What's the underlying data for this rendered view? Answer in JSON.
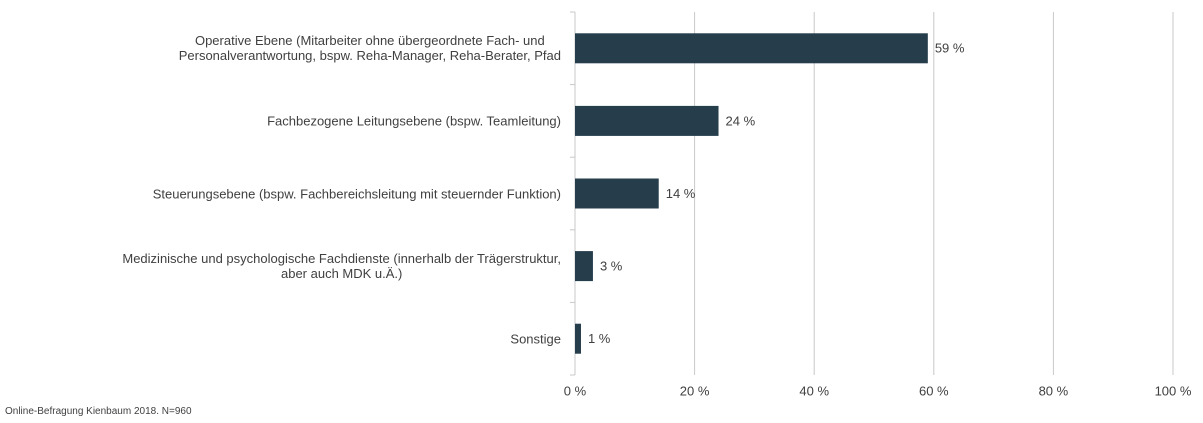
{
  "chart_data": {
    "type": "barh",
    "categories": [
      "Operative Ebene (Mitarbeiter ohne übergeordnete Fach- und\nPersonalverantwortung, bspw. Reha-Manager, Reha-Berater, Pfad",
      "Fachbezogene Leitungsebene (bspw. Teamleitung)",
      "Steuerungsebene (bspw. Fachbereichsleitung mit steuernder Funktion)",
      "Medizinische und psychologische Fachdienste (innerhalb der Trägerstruktur,\naber auch MDK u.Ä.)",
      "Sonstige"
    ],
    "values": [
      59,
      24,
      14,
      3,
      1
    ],
    "value_labels": [
      "59 %",
      "24 %",
      "14 %",
      "3 %",
      "1 %"
    ],
    "color": "#263d4c",
    "xlim": [
      0,
      100
    ],
    "xticks": [
      {
        "value": 0,
        "label": "0 %"
      },
      {
        "value": 20,
        "label": "20 %"
      },
      {
        "value": 40,
        "label": "40 %"
      },
      {
        "value": 60,
        "label": "60 %"
      },
      {
        "value": 80,
        "label": "80 %"
      },
      {
        "value": 100,
        "label": "100 %"
      }
    ],
    "grid": true,
    "footnote": "Online-Befragung Kienbaum 2018. N=960"
  }
}
